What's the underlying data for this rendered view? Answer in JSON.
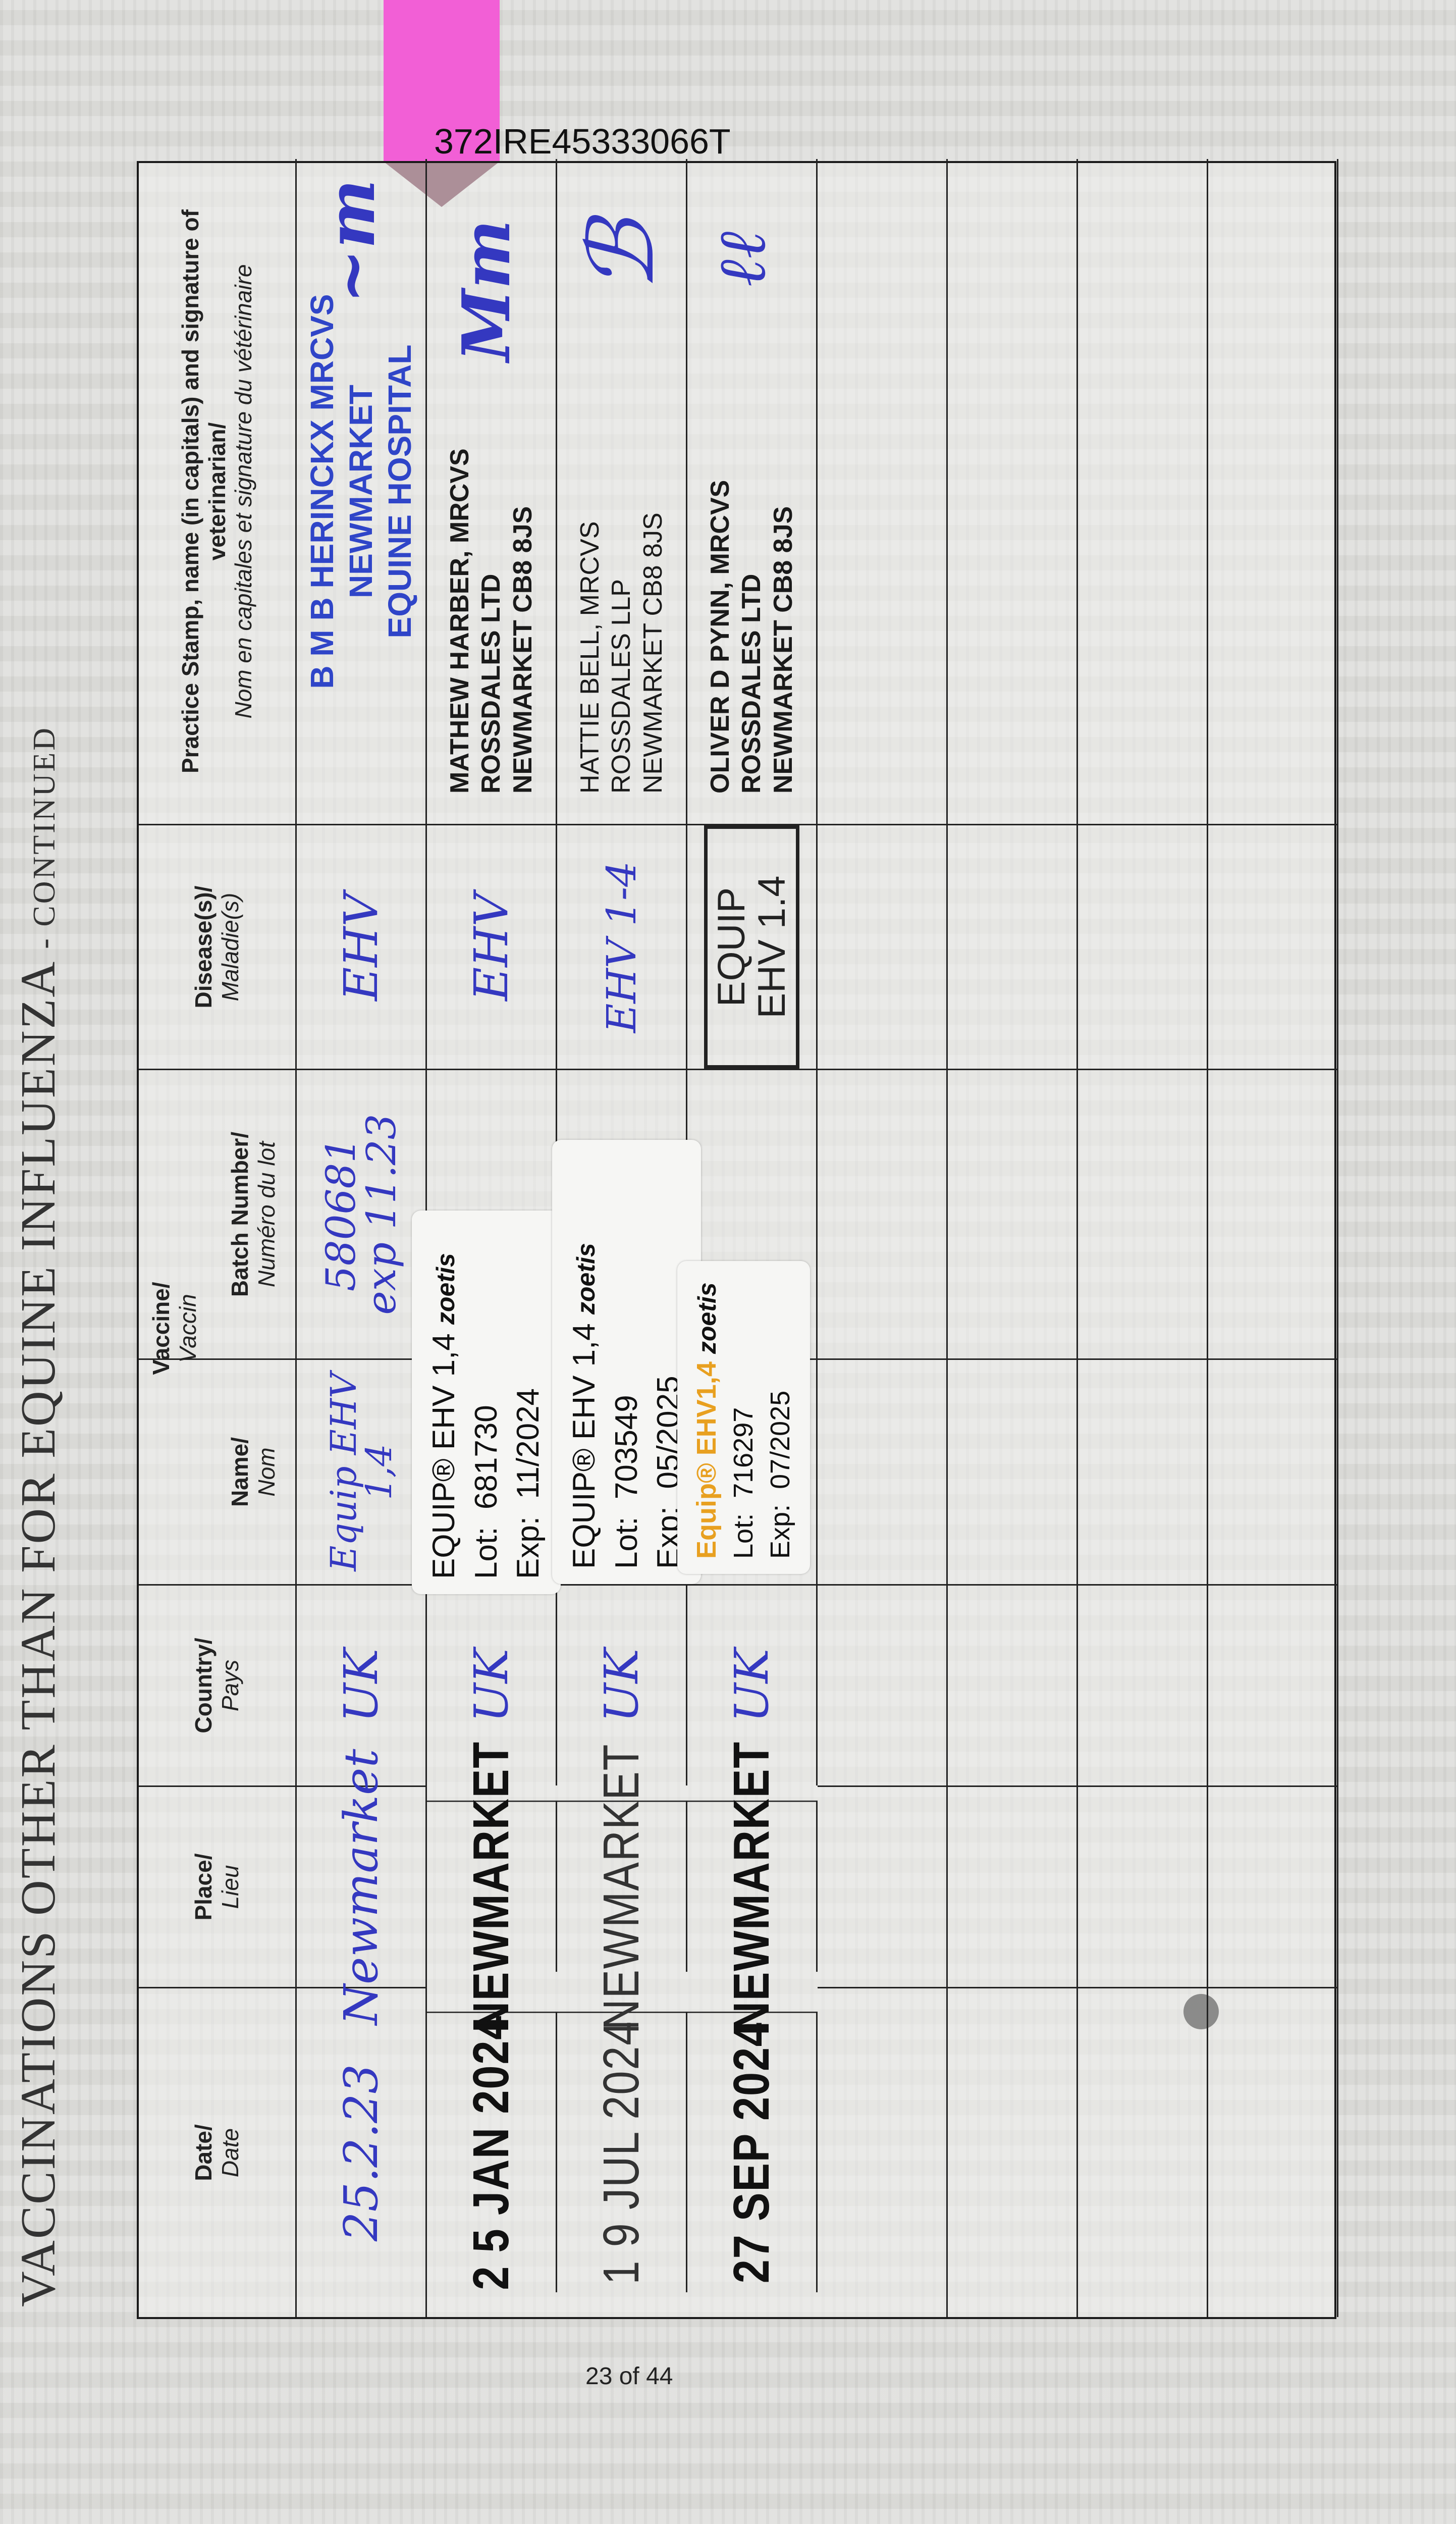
{
  "page_title": "VACCINATIONS OTHER THAN FOR EQUINE INFLUENZA",
  "page_title_suffix": "- CONTINUED",
  "passport_number": "372IRE45333066T",
  "page_number": "23 of 44",
  "colors": {
    "ink_blue": "#3438c0",
    "stamp_blue": "#2f45c8",
    "tab_pink": "#f25fd6"
  },
  "headers": {
    "date": "Date/",
    "date_fr": "Date",
    "place": "Place/",
    "place_fr": "Lieu",
    "country": "Country/",
    "country_fr": "Pays",
    "vaccine": "Vaccine/",
    "vaccine_fr": "Vaccin",
    "name": "Name/",
    "name_fr": "Nom",
    "batch": "Batch Number/",
    "batch_fr": "Numéro du lot",
    "disease": "Disease(s)/",
    "disease_fr": "Maladie(s)",
    "vet": "Practice Stamp, name (in capitals) and signature of veterinarian/",
    "vet_fr": "Nom en capitales et signature du vétérinaire"
  },
  "rows": [
    {
      "date": "25.2.23",
      "place": "Newmarket",
      "country": "UK",
      "name": "Equip EHV 1,4",
      "batch": "580681",
      "batch_exp": "exp 11.23",
      "disease": "EHV",
      "vet": [
        "B M B HERINCKX MRCVS",
        "NEWMARKET",
        "EQUINE HOSPITAL"
      ]
    },
    {
      "date": "2 5 JAN 2024",
      "place": "NEWMARKET",
      "country": "UK",
      "sticker": {
        "product": "EQUIP® EHV 1,4",
        "brand": "zoetis",
        "lot_label": "Lot:",
        "lot": "681730",
        "exp_label": "Exp:",
        "exp": "11/2024"
      },
      "disease": "EHV",
      "vet": [
        "MATHEW HARBER, MRCVS",
        "ROSSDALES LTD",
        "NEWMARKET CB8 8JS"
      ]
    },
    {
      "date": "1 9 JUL 2024",
      "place": "NEWMARKET",
      "country": "UK",
      "sticker": {
        "product": "EQUIP® EHV 1,4",
        "brand": "zoetis",
        "lot_label": "Lot:",
        "lot": "703549",
        "exp_label": "Exp:",
        "exp": "05/2025"
      },
      "disease": "EHV 1-4",
      "vet": [
        "HATTIE BELL, MRCVS",
        "ROSSDALES LLP",
        "NEWMARKET CB8 8JS"
      ]
    },
    {
      "date": "27 SEP 2024",
      "place": "NEWMARKET",
      "country": "UK",
      "sticker": {
        "product": "Equip® EHV1,4",
        "brand": "zoetis",
        "lot_label": "Lot:",
        "lot": "716297",
        "exp_label": "Exp:",
        "exp": "07/2025"
      },
      "disease": "EQUIP EHV 1.4",
      "vet": [
        "OLIVER D PYNN, MRCVS",
        "ROSSDALES LTD",
        "NEWMARKET CB8 8JS"
      ]
    }
  ]
}
